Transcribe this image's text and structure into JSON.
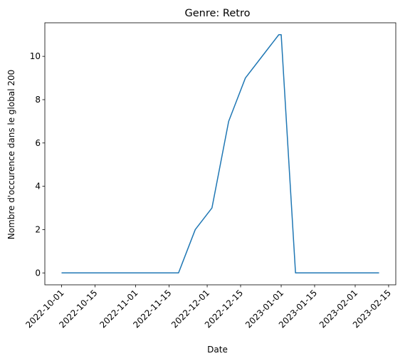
{
  "chart_data": {
    "type": "line",
    "title": "Genre:  Retro",
    "xlabel": "Date",
    "ylabel": "Nombre d'occurence dans le global 200",
    "ylim": [
      -0.55,
      11.55
    ],
    "xlim": [
      "2022-09-24",
      "2023-02-18"
    ],
    "xticks": [
      "2022-10-01",
      "2022-10-15",
      "2022-11-01",
      "2022-11-15",
      "2022-12-01",
      "2022-12-15",
      "2023-01-01",
      "2023-01-15",
      "2023-02-01",
      "2023-02-15"
    ],
    "yticks": [
      0,
      2,
      4,
      6,
      8,
      10
    ],
    "grid": false,
    "color": "#1f77b4",
    "series": [
      {
        "x": [
          "2022-10-01",
          "2022-10-08",
          "2022-10-15",
          "2022-10-22",
          "2022-10-29",
          "2022-11-05",
          "2022-11-12",
          "2022-11-19",
          "2022-11-26",
          "2022-12-03",
          "2022-12-10",
          "2022-12-17",
          "2022-12-24",
          "2022-12-31",
          "2023-01-01",
          "2023-01-07",
          "2023-01-14",
          "2023-01-21",
          "2023-01-28",
          "2023-02-04",
          "2023-02-11"
        ],
        "y": [
          0,
          0,
          0,
          0,
          0,
          0,
          0,
          0,
          2,
          3,
          7,
          9,
          10,
          11,
          11,
          0,
          0,
          0,
          0,
          0,
          0
        ]
      }
    ]
  }
}
